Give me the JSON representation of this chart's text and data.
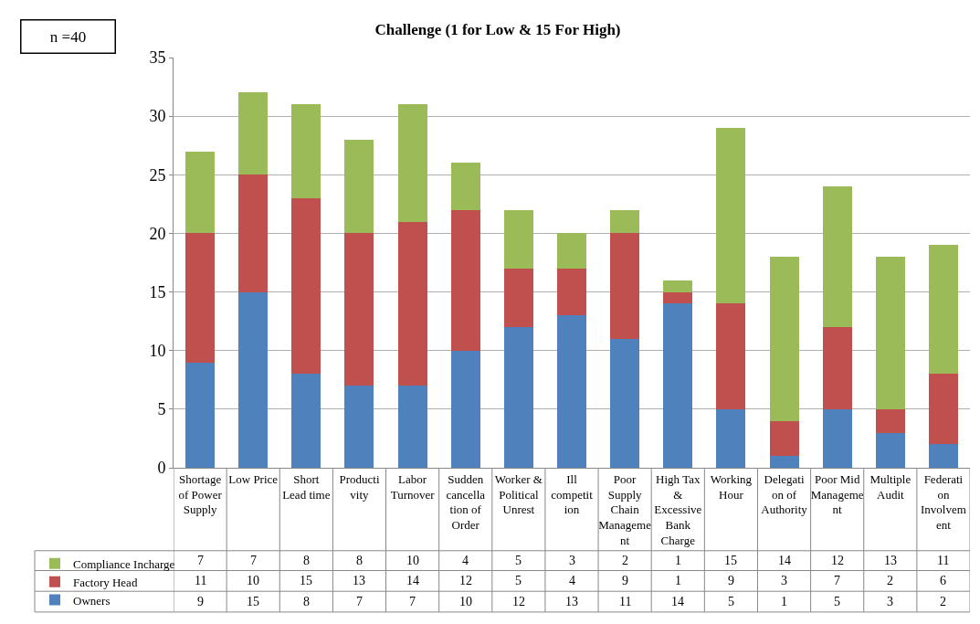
{
  "chart_data": {
    "type": "bar",
    "title": "Challenge (1 for Low & 15 For High)",
    "stacked": true,
    "categories": [
      "Shortage of Power Supply",
      "Low Price",
      "Short Lead time",
      "Productivity",
      "Labor Turnover",
      "Sudden cancellation of Order",
      "Worker & Political Unrest",
      "Ill competition",
      "Poor Supply Chain Management",
      "High Tax & Excessive Bank Charge",
      "Working Hour",
      "Delegation of Authority",
      "Poor Mid Management",
      "Multiple Audit",
      "Federation Involvement"
    ],
    "series": [
      {
        "name": "Owners",
        "color": "#4f81bd",
        "values": [
          9,
          15,
          8,
          7,
          7,
          10,
          12,
          13,
          11,
          14,
          5,
          1,
          5,
          3,
          2
        ]
      },
      {
        "name": "Factory Head",
        "color": "#c0504d",
        "values": [
          11,
          10,
          15,
          13,
          14,
          12,
          5,
          4,
          9,
          1,
          9,
          3,
          7,
          2,
          6
        ]
      },
      {
        "name": "Compliance Incharge",
        "color": "#9bbb59",
        "values": [
          7,
          7,
          8,
          8,
          10,
          4,
          5,
          3,
          2,
          1,
          15,
          14,
          12,
          13,
          11
        ]
      }
    ],
    "ylim": [
      0,
      35
    ],
    "yticks": [
      0,
      5,
      10,
      15,
      20,
      25,
      30,
      35
    ],
    "grid": "y",
    "legend": "bottom left",
    "data_labels": true,
    "annotations": [
      "n =40"
    ]
  }
}
